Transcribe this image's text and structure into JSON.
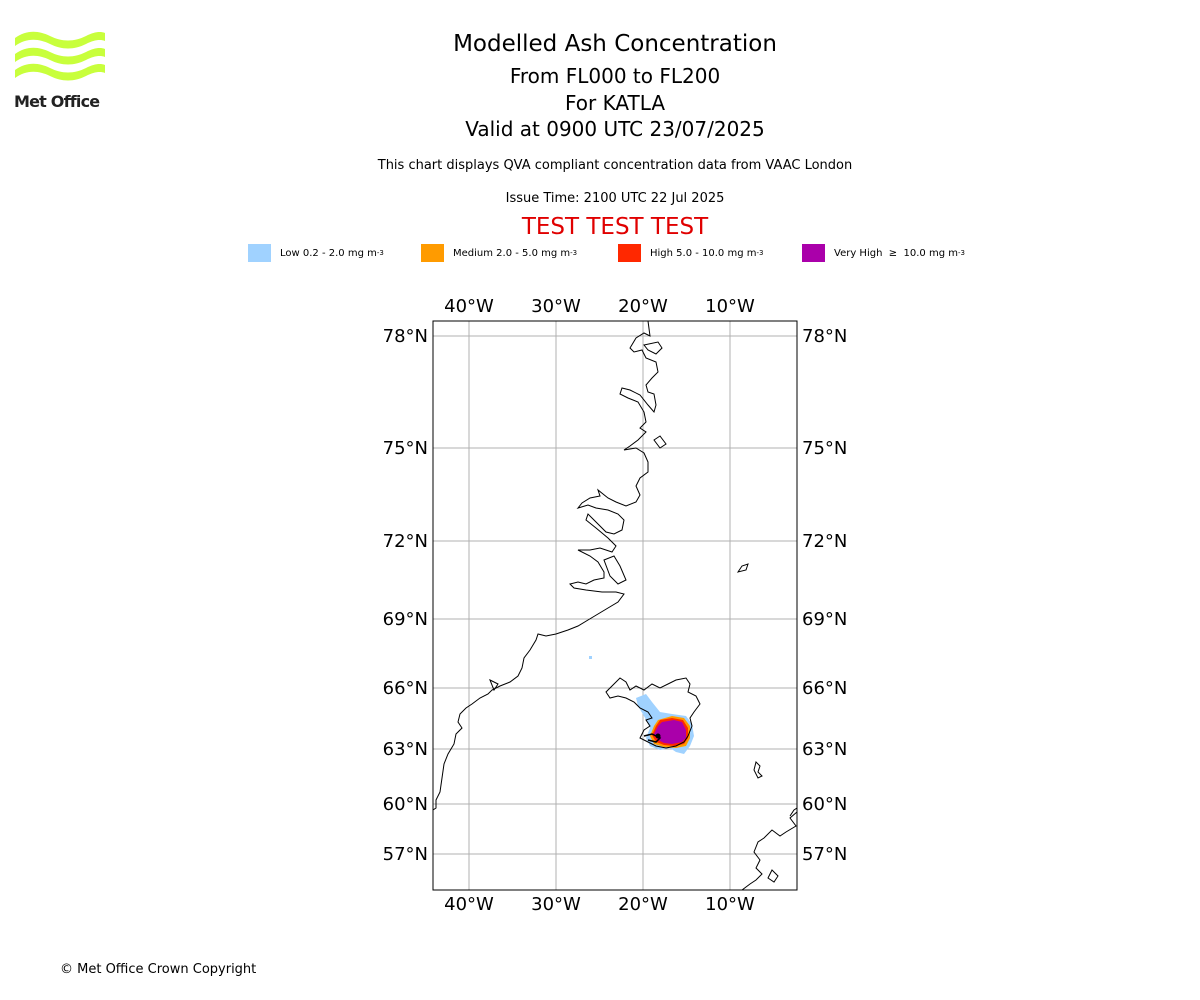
{
  "logo": {
    "text": "Met Office",
    "color": "#c8ff3c"
  },
  "title": {
    "line1": "Modelled Ash Concentration",
    "line2": "From FL000 to FL200",
    "line3": "For KATLA",
    "line4": "Valid at 0900 UTC 23/07/2025"
  },
  "subtitle": "This chart displays QVA compliant concentration data from VAAC London",
  "issue_time": "Issue Time: 2100 UTC 22 Jul 2025",
  "test_banner": "TEST TEST TEST",
  "legend": [
    {
      "label": "Low 0.2 - 2.0 mg m",
      "unit_exp": "-3",
      "color": "#a0d2ff"
    },
    {
      "label": "Medium 2.0 - 5.0 mg m",
      "unit_exp": "-3",
      "color": "#ff9b00"
    },
    {
      "label": "High 5.0 - 10.0 mg m",
      "unit_exp": "-3",
      "color": "#ff2800"
    },
    {
      "label": "Very High  ≥  10.0 mg m",
      "unit_exp": "-3",
      "color": "#aa00aa"
    }
  ],
  "map": {
    "lon_labels": [
      "40°W",
      "30°W",
      "20°W",
      "10°W"
    ],
    "lat_labels": [
      "78°N",
      "75°N",
      "72°N",
      "69°N",
      "66°N",
      "63°N",
      "60°N",
      "57°N"
    ]
  },
  "copyright": "© Met Office Crown Copyright"
}
